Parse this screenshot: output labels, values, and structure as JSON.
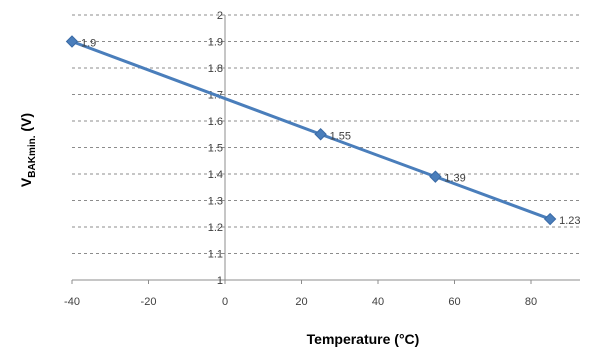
{
  "chart_data": {
    "type": "line",
    "x": [
      -40,
      25,
      55,
      85
    ],
    "series": [
      {
        "values": [
          1.9,
          1.55,
          1.39,
          1.23
        ]
      }
    ],
    "data_labels": [
      "1.9",
      "1.55",
      "1.39",
      "1.23"
    ],
    "xlabel": "Temperature (°C)",
    "ylabel_main": "V",
    "ylabel_subscript": "BAKmin.",
    "ylabel_suffix": " (V)",
    "xlim": [
      -40,
      90
    ],
    "ylim": [
      1,
      2
    ],
    "x_ticks": [
      "-40",
      "-20",
      "0",
      "20",
      "40",
      "60",
      "80"
    ],
    "y_ticks": [
      "1",
      "1.1",
      "1.2",
      "1.3",
      "1.4",
      "1.5",
      "1.6",
      "1.7",
      "1.8",
      "1.9",
      "2"
    ],
    "grid": "horizontal-dashed",
    "series_color": "#4a7ebb",
    "legend": "none"
  }
}
